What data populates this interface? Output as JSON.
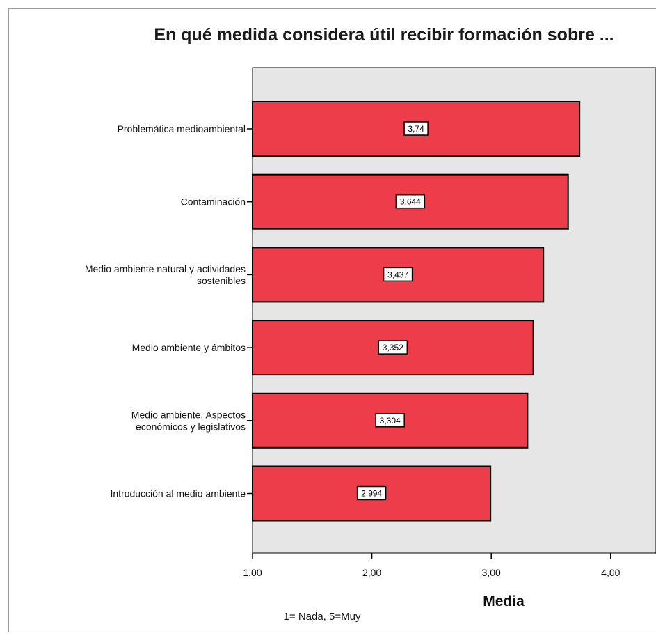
{
  "chart_data": {
    "type": "bar",
    "orientation": "horizontal",
    "title": "En qué medida considera útil recibir formación sobre ...",
    "categories": [
      [
        "Problemática medioambiental"
      ],
      [
        "Contaminación"
      ],
      [
        "Medio ambiente natural y actividades",
        "sostenibles"
      ],
      [
        "Medio ambiente y ámbitos"
      ],
      [
        "Medio ambiente. Aspectos",
        "económicos y legislativos"
      ],
      [
        "Introducción al medio ambiente"
      ]
    ],
    "values": [
      3.74,
      3.644,
      3.437,
      3.352,
      3.304,
      2.994
    ],
    "data_labels": [
      "3,74",
      "3,644",
      "3,437",
      "3,352",
      "3,304",
      "2,994"
    ],
    "xlabel": "Media",
    "note": "1= Nada, 5=Muy",
    "xlim": [
      1,
      4.38
    ],
    "xticks": [
      1,
      2,
      3,
      4
    ],
    "xtick_labels": [
      "1,00",
      "2,00",
      "3,00",
      "4,00"
    ],
    "colors": {
      "bar": "#ee3d4a",
      "plot_bg": "#e6e6e6",
      "border": "#000000"
    },
    "grid": false
  }
}
